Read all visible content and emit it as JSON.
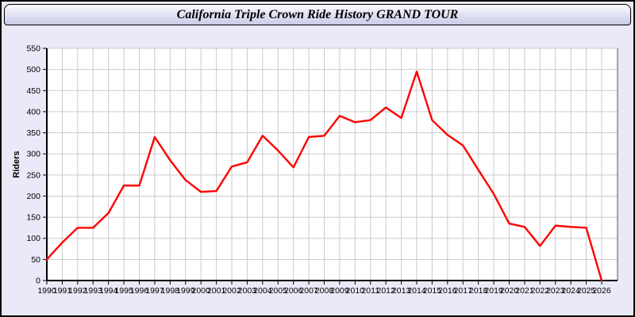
{
  "header": {
    "title": "California Triple Crown Ride History GRAND TOUR"
  },
  "chart_data": {
    "type": "line",
    "title": "California Triple Crown Ride History GRAND TOUR",
    "x": [
      1990,
      1991,
      1992,
      1993,
      1994,
      1995,
      1996,
      1997,
      1998,
      1999,
      2000,
      2001,
      2002,
      2003,
      2004,
      2005,
      2006,
      2007,
      2008,
      2009,
      2010,
      2011,
      2012,
      2013,
      2014,
      2015,
      2016,
      2017,
      2018,
      2019,
      2020,
      2021,
      2022,
      2023,
      2024,
      2025,
      2026
    ],
    "series": [
      {
        "name": "Riders",
        "values": [
          50,
          90,
          125,
          125,
          160,
          225,
          225,
          340,
          285,
          238,
          210,
          212,
          270,
          280,
          343,
          308,
          268,
          340,
          343,
          390,
          375,
          380,
          410,
          385,
          495,
          380,
          345,
          320,
          262,
          205,
          135,
          127,
          82,
          130,
          127,
          125,
          0
        ]
      }
    ],
    "xlabel": "",
    "ylabel": "Riders",
    "ylim": [
      0,
      550
    ],
    "ytick_step": 50,
    "grid": true,
    "legend": false,
    "line_color": "#FF0000"
  },
  "colors": {
    "page_bg": "#E9E9F8",
    "header_gradient_top": "#FEFEFF",
    "header_gradient_bottom": "#CACAE6",
    "plot_bg": "#FFFFFF",
    "grid": "#CBCBCB",
    "axis": "#000000",
    "plot_right_border": "#555555",
    "text": "#000000",
    "line": "#FF0000"
  }
}
